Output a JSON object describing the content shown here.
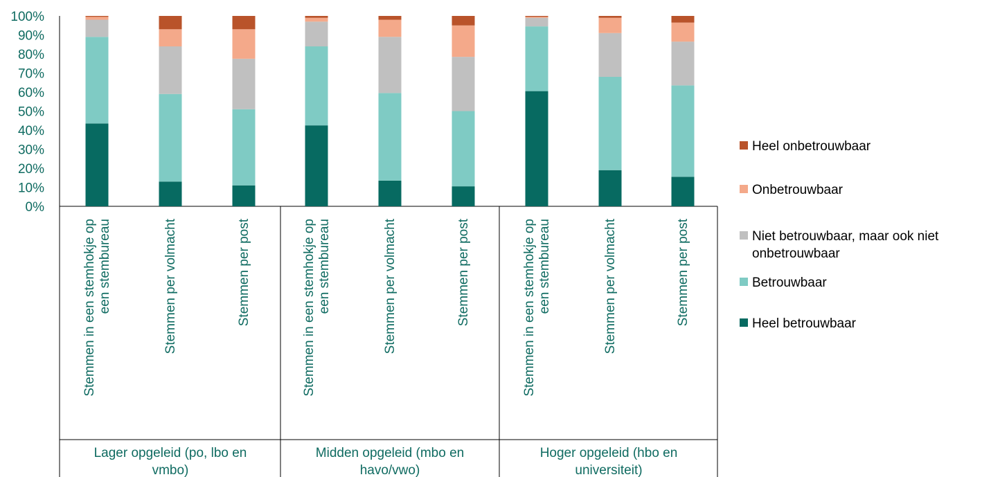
{
  "chart_data": {
    "type": "bar",
    "stacked": true,
    "percent_scale": true,
    "ylim": [
      0,
      100
    ],
    "yticks": [
      "0%",
      "10%",
      "20%",
      "30%",
      "40%",
      "50%",
      "60%",
      "70%",
      "80%",
      "90%",
      "100%"
    ],
    "groups": [
      {
        "label": "Lager opgeleid (po, lbo en vmbo)",
        "categories": [
          0,
          1,
          2
        ]
      },
      {
        "label": "Midden opgeleid (mbo en havo/vwo)",
        "categories": [
          3,
          4,
          5
        ]
      },
      {
        "label": "Hoger opgeleid (hbo en universiteit)",
        "categories": [
          6,
          7,
          8
        ]
      }
    ],
    "categories": [
      [
        "Stemmen in een stemhokje op",
        "een stembureau"
      ],
      [
        "Stemmen per volmacht"
      ],
      [
        "Stemmen per post"
      ],
      [
        "Stemmen in een stemhokje op",
        "een stembureau"
      ],
      [
        "Stemmen per volmacht"
      ],
      [
        "Stemmen per post"
      ],
      [
        "Stemmen in een stemhokje op",
        "een stembureau"
      ],
      [
        "Stemmen per volmacht"
      ],
      [
        "Stemmen per post"
      ]
    ],
    "series": [
      {
        "name": "Heel betrouwbaar",
        "color": "#076a61",
        "values": [
          43.5,
          13,
          11,
          42.5,
          13.5,
          10.5,
          60.5,
          19,
          15.5
        ]
      },
      {
        "name": "Betrouwbaar",
        "color": "#7fcbc4",
        "values": [
          45.5,
          46,
          40,
          41.5,
          46,
          39.5,
          34,
          49,
          48
        ]
      },
      {
        "name": "Niet betrouwbaar, maar ook niet onbetrouwbaar",
        "color": "#c0c0c0",
        "values": [
          9,
          25,
          26.5,
          13,
          29.5,
          28.5,
          4.5,
          23,
          23
        ]
      },
      {
        "name": "Onbetrouwbaar",
        "color": "#f4a98a",
        "values": [
          1.5,
          9,
          15.5,
          2,
          9,
          16.5,
          0.5,
          8,
          10
        ]
      },
      {
        "name": "Heel onbetrouwbaar",
        "color": "#b9532a",
        "values": [
          0.5,
          7,
          7,
          1,
          2,
          5,
          0.5,
          1,
          3.5
        ]
      }
    ],
    "legend": {
      "position": "right",
      "entries": [
        {
          "lines": [
            "Heel onbetrouwbaar"
          ],
          "series": 4
        },
        {
          "lines": [
            "Onbetrouwbaar"
          ],
          "series": 3
        },
        {
          "lines": [
            "Niet betrouwbaar, maar ook niet",
            "onbetrouwbaar"
          ],
          "series": 2
        },
        {
          "lines": [
            "Betrouwbaar"
          ],
          "series": 1
        },
        {
          "lines": [
            "Heel betrouwbaar"
          ],
          "series": 0
        }
      ]
    },
    "group_label_lines": [
      [
        "Lager opgeleid (po, lbo en",
        "vmbo)"
      ],
      [
        "Midden opgeleid (mbo en",
        "havo/vwo)"
      ],
      [
        "Hoger opgeleid (hbo en",
        "universiteit)"
      ]
    ]
  }
}
